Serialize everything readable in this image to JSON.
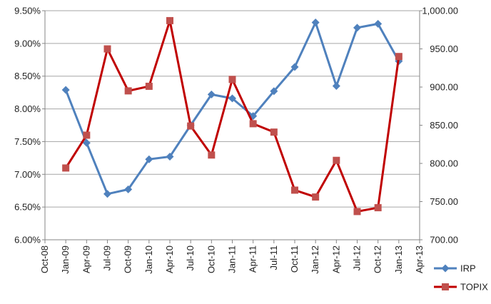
{
  "chart_data": {
    "type": "line",
    "title": "",
    "xlabel": "",
    "ylabel": "",
    "y2label": "",
    "x_ticks": [
      "Oct-08",
      "Jan-09",
      "Apr-09",
      "Jul-09",
      "Oct-09",
      "Jan-10",
      "Apr-10",
      "Jul-10",
      "Oct-10",
      "Jan-11",
      "Apr-11",
      "Jul-11",
      "Oct-11",
      "Jan-12",
      "Apr-12",
      "Jul-12",
      "Oct-12",
      "Jan-13",
      "Apr-13"
    ],
    "y_left": {
      "min": 0.06,
      "max": 0.095,
      "step": 0.005,
      "tick_labels": [
        "6.00%",
        "6.50%",
        "7.00%",
        "7.50%",
        "8.00%",
        "8.50%",
        "9.00%",
        "9.50%"
      ]
    },
    "y_right": {
      "min": 700,
      "max": 1000,
      "step": 50,
      "tick_labels": [
        "700.00",
        "750.00",
        "800.00",
        "850.00",
        "900.00",
        "950.00",
        "1,000.00"
      ]
    },
    "grid": "horizontal",
    "legend_position": "bottom-right",
    "series": [
      {
        "name": "IRP",
        "axis": "left",
        "color": "#4F81BD",
        "marker": "diamond",
        "x": [
          "Jan-09",
          "Apr-09",
          "Jul-09",
          "Oct-09",
          "Jan-10",
          "Apr-10",
          "Jul-10",
          "Oct-10",
          "Jan-11",
          "Apr-11",
          "Jul-11",
          "Oct-11",
          "Jan-12",
          "Apr-12",
          "Jul-12",
          "Oct-12",
          "Jan-13"
        ],
        "values": [
          0.0829,
          0.0748,
          0.067,
          0.0677,
          0.0723,
          0.0727,
          0.0775,
          0.0822,
          0.0816,
          0.0789,
          0.0827,
          0.0864,
          0.0932,
          0.0835,
          0.0924,
          0.093,
          0.0873
        ]
      },
      {
        "name": "TOPIX",
        "axis": "right",
        "color": "#C00000",
        "marker_color": "#C0504D",
        "marker": "square",
        "x": [
          "Jan-09",
          "Apr-09",
          "Jul-09",
          "Oct-09",
          "Jan-10",
          "Apr-10",
          "Jul-10",
          "Oct-10",
          "Jan-11",
          "Apr-11",
          "Jul-11",
          "Oct-11",
          "Jan-12",
          "Apr-12",
          "Jul-12",
          "Oct-12",
          "Jan-13"
        ],
        "values": [
          794,
          837,
          950,
          895,
          901,
          987,
          849,
          811,
          910,
          852,
          841,
          765,
          756,
          804,
          737,
          742,
          940
        ]
      }
    ]
  }
}
